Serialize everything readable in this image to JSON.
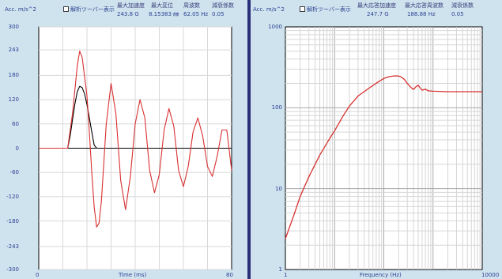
{
  "left_panel": {
    "unit_label": "Acc. m/s^2",
    "analysis_toolbar": "解析ツーバー表示",
    "headers": [
      "最大加速度",
      "最大変位",
      "周波数",
      "減衰係数"
    ],
    "values": [
      "243.8 G",
      "8.15383 ㎜",
      "62.05 Hz",
      "0.05"
    ],
    "y_ticks": [
      "300",
      "243",
      "180",
      "120",
      "60",
      "0",
      "-60",
      "-120",
      "-180",
      "-243",
      "-300"
    ],
    "x_min_label": "0",
    "x_max_label": "80",
    "x_axis_label": "Time (ms)"
  },
  "right_panel": {
    "unit_label": "Acc. m/s^2",
    "analysis_toolbar": "解析ツーバー表示",
    "headers": [
      "最大応答加速度",
      "最大応答周波数",
      "減衰係数"
    ],
    "values": [
      "247.7 G",
      "188.88 Hz",
      "0.05"
    ],
    "y_ticks": [
      "1000",
      "100",
      "10",
      "1"
    ],
    "x_min_label": "1",
    "x_max_label": "10000",
    "x_axis_label": "Frequency (Hz)"
  },
  "chart_data": [
    {
      "type": "line",
      "xlabel": "Time (ms)",
      "ylabel": "Acc. m/s^2",
      "xlim": [
        0,
        80
      ],
      "ylim": [
        -300,
        300
      ],
      "grid": true,
      "series": [
        {
          "color": "#000000",
          "x": [
            0,
            12,
            13,
            14,
            15,
            16,
            17,
            18,
            19,
            20,
            21,
            22,
            23,
            24,
            25,
            80
          ],
          "y": [
            0,
            0,
            30,
            70,
            110,
            140,
            153,
            150,
            135,
            108,
            75,
            40,
            8,
            0,
            0,
            0
          ]
        },
        {
          "color": "#d83030",
          "x": [
            0,
            12,
            14,
            16,
            17,
            18,
            20,
            21,
            22,
            23,
            24,
            25,
            26,
            28,
            30,
            32,
            34,
            36,
            38,
            40,
            42,
            44,
            46,
            48,
            50,
            52,
            54,
            56,
            58,
            60,
            62,
            64,
            66,
            68,
            70,
            72,
            74,
            76,
            78,
            80
          ],
          "y": [
            0,
            0,
            85,
            205,
            240,
            225,
            130,
            40,
            -60,
            -145,
            -195,
            -185,
            -130,
            60,
            160,
            85,
            -80,
            -152,
            -70,
            60,
            120,
            75,
            -55,
            -110,
            -65,
            45,
            98,
            55,
            -55,
            -95,
            -45,
            40,
            75,
            30,
            -45,
            -70,
            -20,
            45,
            45,
            -55
          ]
        }
      ]
    },
    {
      "type": "line",
      "xlabel": "Frequency (Hz)",
      "ylabel": "Acc. m/s^2",
      "x_scale": "log",
      "y_scale": "log",
      "xlim": [
        1,
        10000
      ],
      "ylim": [
        1,
        1000
      ],
      "grid": true,
      "series": [
        {
          "color": "#d83030",
          "x": [
            1,
            1.5,
            2,
            3,
            5,
            8,
            10,
            15,
            20,
            30,
            50,
            80,
            100,
            130,
            160,
            188.88,
            220,
            260,
            300,
            350,
            400,
            450,
            500,
            550,
            600,
            700,
            800,
            1000,
            2000,
            5000,
            10000
          ],
          "y": [
            2.4,
            4.8,
            8,
            14,
            26,
            42,
            52,
            80,
            105,
            140,
            175,
            212,
            230,
            243,
            247,
            247.7,
            243,
            225,
            200,
            180,
            168,
            182,
            190,
            175,
            165,
            170,
            162,
            160,
            158,
            158,
            158
          ]
        }
      ]
    }
  ]
}
